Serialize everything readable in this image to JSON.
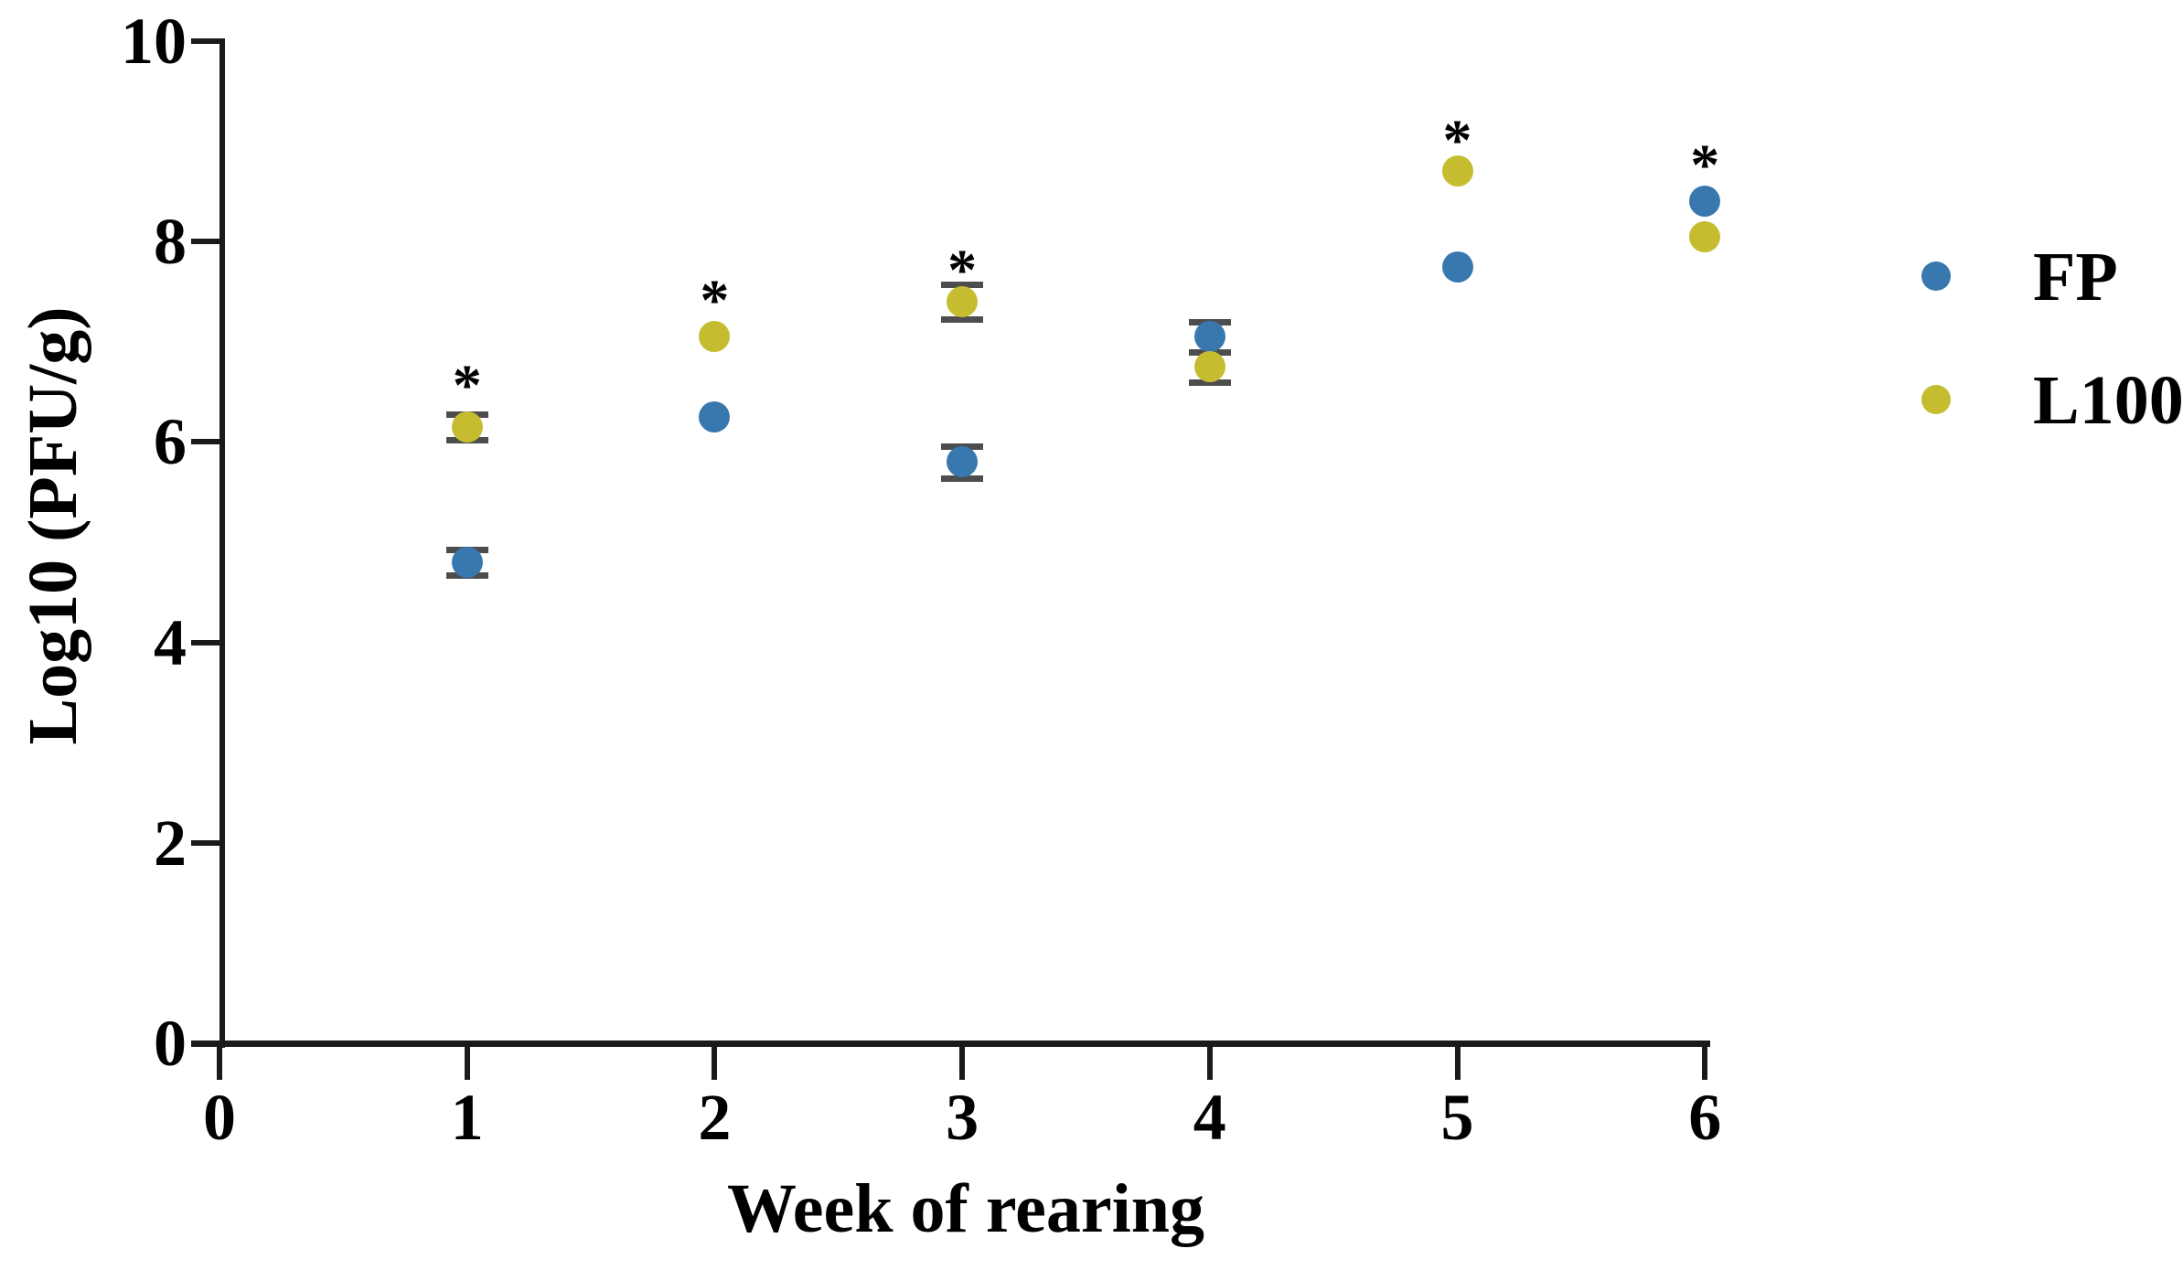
{
  "chart_data": {
    "type": "scatter",
    "title": "",
    "xlabel": "Week of rearing",
    "ylabel": "Log10 (PFU/g)",
    "xlim": [
      0,
      6
    ],
    "ylim": [
      0,
      10
    ],
    "xticks": [
      0,
      1,
      2,
      3,
      4,
      5,
      6
    ],
    "yticks": [
      0,
      2,
      4,
      6,
      8,
      10
    ],
    "grid": false,
    "legend_position": "right-outside",
    "x": [
      1,
      2,
      3,
      4,
      5,
      6
    ],
    "series": [
      {
        "name": "FP",
        "marker": "circle",
        "color": "#3878af",
        "values": [
          4.8,
          6.25,
          5.8,
          7.05,
          7.75,
          8.4
        ],
        "errors": [
          0.13,
          null,
          0.16,
          0.15,
          null,
          null
        ]
      },
      {
        "name": "L100",
        "marker": "circle",
        "color": "#c6bc30",
        "values": [
          6.15,
          7.05,
          7.4,
          6.75,
          8.7,
          8.05
        ],
        "errors": [
          0.13,
          null,
          0.17,
          0.15,
          null,
          null
        ]
      }
    ],
    "significance_markers": {
      "symbol": "*",
      "points": [
        {
          "x": 1,
          "y": 6.65
        },
        {
          "x": 2,
          "y": 7.5
        },
        {
          "x": 3,
          "y": 7.8
        },
        {
          "x": 5,
          "y": 9.1
        },
        {
          "x": 6,
          "y": 8.85
        }
      ]
    },
    "error_bar_color": "#4d4d4d",
    "axis_color": "#1a1a1a"
  }
}
